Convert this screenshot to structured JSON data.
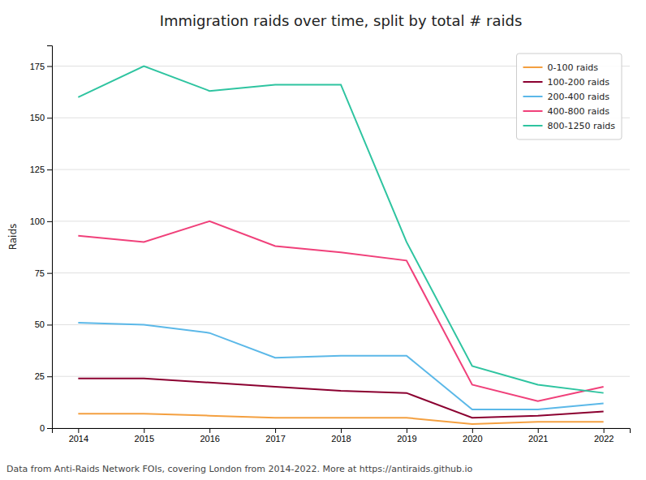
{
  "chart_data": {
    "type": "line",
    "title": "Immigration raids over time, split by total # raids",
    "ylabel": "Raids",
    "footnote": "Data from Anti-Raids Network FOIs, covering London from 2014-2022. More at https://antiraids.github.io",
    "x": [
      2014,
      2015,
      2016,
      2017,
      2018,
      2019,
      2020,
      2021,
      2022
    ],
    "xlim": [
      2013.6,
      2022.4
    ],
    "xticks": [
      2014,
      2015,
      2016,
      2017,
      2018,
      2019,
      2020,
      2021,
      2022
    ],
    "ylim": [
      0,
      185
    ],
    "yticks": [
      0,
      25,
      50,
      75,
      100,
      125,
      150,
      175
    ],
    "grid": "y",
    "legend": "upper right",
    "series": [
      {
        "name": "0-100 raids",
        "color": "#f4a040",
        "values": [
          7,
          7,
          6,
          5,
          5,
          5,
          2,
          3,
          3
        ]
      },
      {
        "name": "100-200 raids",
        "color": "#8b0030",
        "values": [
          24,
          24,
          22,
          20,
          18,
          17,
          5,
          6,
          8
        ]
      },
      {
        "name": "200-400 raids",
        "color": "#5bb8e8",
        "values": [
          51,
          50,
          46,
          34,
          35,
          35,
          9,
          9,
          12
        ]
      },
      {
        "name": "400-800 raids",
        "color": "#f0407a",
        "values": [
          93,
          90,
          100,
          88,
          85,
          81,
          21,
          13,
          20
        ]
      },
      {
        "name": "800-1250 raids",
        "color": "#2ec4a0",
        "values": [
          160,
          175,
          163,
          166,
          166,
          90,
          30,
          21,
          17
        ]
      }
    ]
  }
}
